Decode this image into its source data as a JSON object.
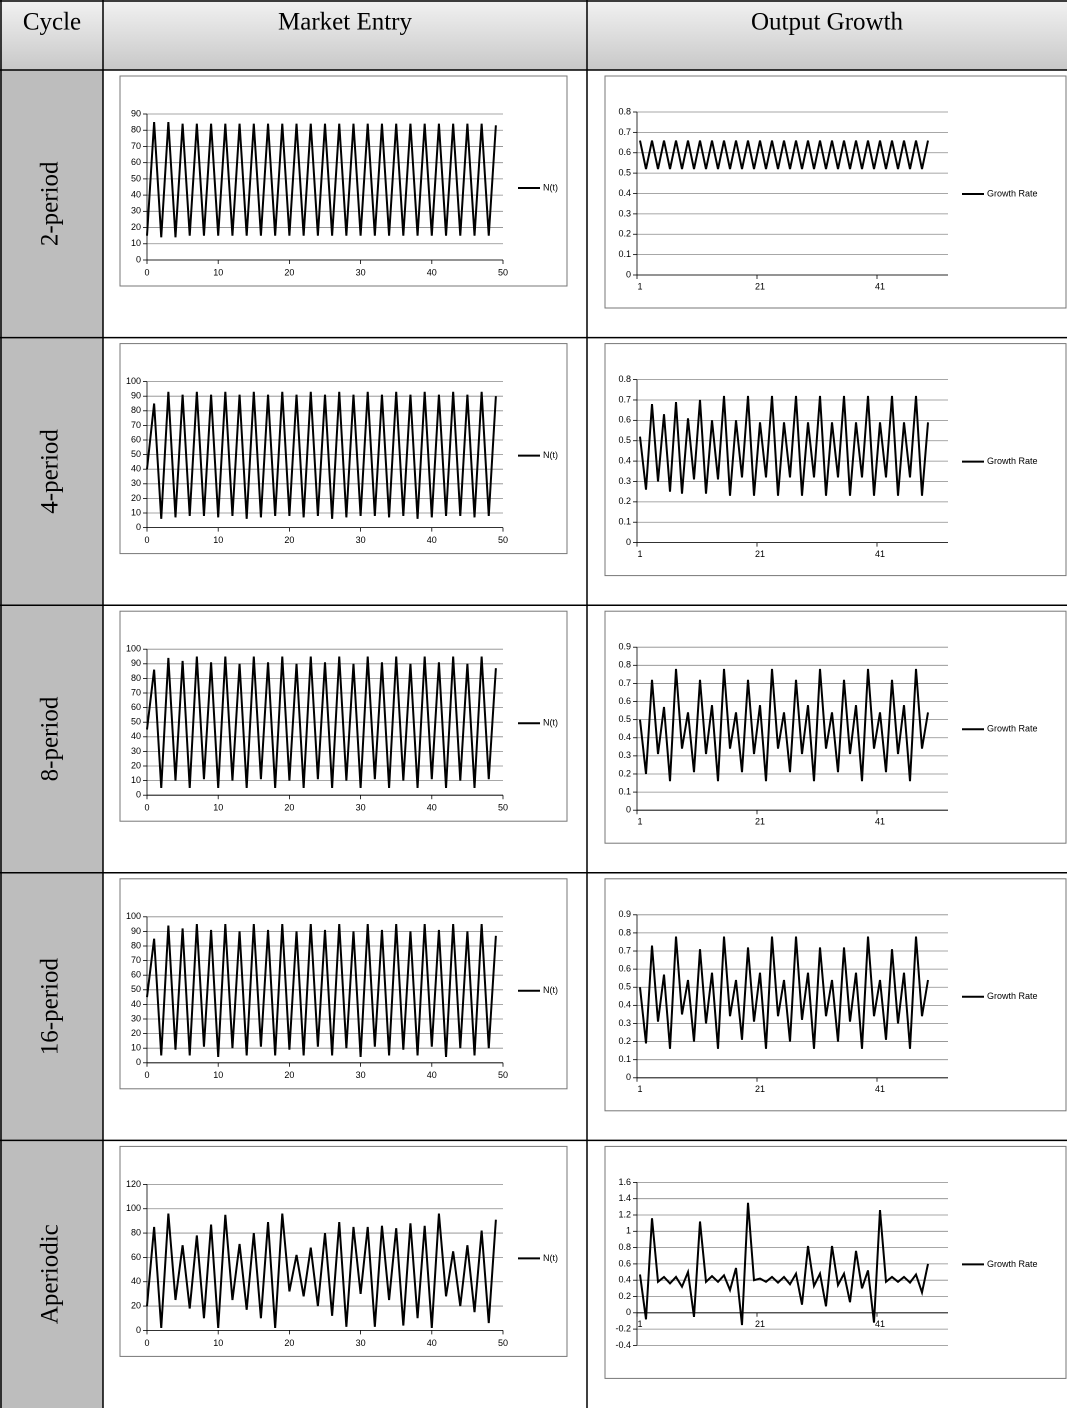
{
  "table": {
    "headers": [
      "Cycle",
      "Market Entry",
      "Output Growth"
    ],
    "rows": [
      "2-period",
      "4-period",
      "8-period",
      "16-period",
      "Aperiodic"
    ]
  },
  "chart_data": [
    {
      "type": "line",
      "x": [
        0,
        1,
        2,
        3,
        4,
        5,
        6,
        7,
        8,
        9,
        10,
        11,
        12,
        13,
        14,
        15,
        16,
        17,
        18,
        19,
        20,
        21,
        22,
        23,
        24,
        25,
        26,
        27,
        28,
        29,
        30,
        31,
        32,
        33,
        34,
        35,
        36,
        37,
        38,
        39,
        40,
        41,
        42,
        43,
        44,
        45,
        46,
        47,
        48,
        49
      ],
      "xlim": [
        0,
        50
      ],
      "xticks": [
        0,
        10,
        20,
        30,
        40,
        50
      ],
      "ylim": [
        0,
        90
      ],
      "yticks": [
        0,
        10,
        20,
        30,
        40,
        50,
        60,
        70,
        80,
        90
      ],
      "grid": true,
      "series": [
        {
          "name": "N(t)",
          "color": "#000000",
          "values": [
            15,
            85,
            14,
            85,
            14,
            84,
            15,
            84,
            15,
            84,
            15,
            84,
            15,
            84,
            15,
            84,
            15,
            84,
            15,
            84,
            15,
            84,
            15,
            84,
            15,
            84,
            15,
            84,
            15,
            84,
            15,
            84,
            15,
            84,
            15,
            84,
            15,
            84,
            15,
            84,
            15,
            84,
            15,
            84,
            15,
            84,
            15,
            84,
            15,
            83
          ]
        }
      ]
    },
    {
      "type": "line",
      "categories": [
        "1",
        null,
        null,
        null,
        null,
        null,
        null,
        null,
        null,
        null,
        null,
        null,
        null,
        null,
        null,
        null,
        null,
        null,
        null,
        null,
        "21",
        null,
        null,
        null,
        null,
        null,
        null,
        null,
        null,
        null,
        null,
        null,
        null,
        null,
        null,
        null,
        null,
        null,
        null,
        null,
        "41",
        null,
        null,
        null,
        null,
        null,
        null,
        null,
        null
      ],
      "ylim": [
        0,
        0.8
      ],
      "yticks": [
        0,
        0.1,
        0.2,
        0.3,
        0.4,
        0.5,
        0.6,
        0.7,
        0.8
      ],
      "grid": true,
      "series": [
        {
          "name": "Growth Rate",
          "color": "#000000",
          "values": [
            0.66,
            0.52,
            0.66,
            0.52,
            0.66,
            0.52,
            0.66,
            0.52,
            0.66,
            0.52,
            0.66,
            0.52,
            0.66,
            0.52,
            0.66,
            0.52,
            0.66,
            0.52,
            0.66,
            0.52,
            0.66,
            0.52,
            0.66,
            0.52,
            0.66,
            0.52,
            0.66,
            0.52,
            0.66,
            0.52,
            0.66,
            0.52,
            0.66,
            0.52,
            0.66,
            0.52,
            0.66,
            0.52,
            0.66,
            0.52,
            0.66,
            0.52,
            0.66,
            0.52,
            0.66,
            0.52,
            0.66,
            0.52,
            0.66
          ]
        }
      ]
    },
    {
      "type": "line",
      "x": [
        0,
        1,
        2,
        3,
        4,
        5,
        6,
        7,
        8,
        9,
        10,
        11,
        12,
        13,
        14,
        15,
        16,
        17,
        18,
        19,
        20,
        21,
        22,
        23,
        24,
        25,
        26,
        27,
        28,
        29,
        30,
        31,
        32,
        33,
        34,
        35,
        36,
        37,
        38,
        39,
        40,
        41,
        42,
        43,
        44,
        45,
        46,
        47,
        48,
        49
      ],
      "xlim": [
        0,
        50
      ],
      "xticks": [
        0,
        10,
        20,
        30,
        40,
        50
      ],
      "ylim": [
        0,
        100
      ],
      "yticks": [
        0,
        10,
        20,
        30,
        40,
        50,
        60,
        70,
        80,
        90,
        100
      ],
      "grid": true,
      "series": [
        {
          "name": "N(t)",
          "color": "#000000",
          "values": [
            40,
            85,
            6,
            93,
            7,
            91,
            8,
            93,
            8,
            91,
            7,
            93,
            8,
            91,
            6,
            93,
            7,
            91,
            8,
            93,
            8,
            91,
            7,
            93,
            8,
            91,
            6,
            93,
            7,
            91,
            8,
            93,
            8,
            91,
            7,
            93,
            8,
            91,
            6,
            93,
            7,
            91,
            8,
            93,
            8,
            91,
            7,
            93,
            8,
            90
          ]
        }
      ]
    },
    {
      "type": "line",
      "categories": [
        "1",
        null,
        null,
        null,
        null,
        null,
        null,
        null,
        null,
        null,
        null,
        null,
        null,
        null,
        null,
        null,
        null,
        null,
        null,
        null,
        "21",
        null,
        null,
        null,
        null,
        null,
        null,
        null,
        null,
        null,
        null,
        null,
        null,
        null,
        null,
        null,
        null,
        null,
        null,
        null,
        "41",
        null,
        null,
        null,
        null,
        null,
        null,
        null,
        null
      ],
      "ylim": [
        0,
        0.8
      ],
      "yticks": [
        0,
        0.1,
        0.2,
        0.3,
        0.4,
        0.5,
        0.6,
        0.7,
        0.8
      ],
      "grid": true,
      "series": [
        {
          "name": "Growth Rate",
          "color": "#000000",
          "values": [
            0.52,
            0.26,
            0.68,
            0.3,
            0.63,
            0.25,
            0.69,
            0.24,
            0.61,
            0.31,
            0.7,
            0.24,
            0.6,
            0.31,
            0.72,
            0.23,
            0.6,
            0.32,
            0.72,
            0.23,
            0.59,
            0.32,
            0.72,
            0.23,
            0.59,
            0.32,
            0.72,
            0.23,
            0.59,
            0.32,
            0.72,
            0.23,
            0.59,
            0.32,
            0.72,
            0.23,
            0.59,
            0.32,
            0.72,
            0.23,
            0.59,
            0.32,
            0.72,
            0.23,
            0.59,
            0.32,
            0.72,
            0.23,
            0.59
          ]
        }
      ]
    },
    {
      "type": "line",
      "x": [
        0,
        1,
        2,
        3,
        4,
        5,
        6,
        7,
        8,
        9,
        10,
        11,
        12,
        13,
        14,
        15,
        16,
        17,
        18,
        19,
        20,
        21,
        22,
        23,
        24,
        25,
        26,
        27,
        28,
        29,
        30,
        31,
        32,
        33,
        34,
        35,
        36,
        37,
        38,
        39,
        40,
        41,
        42,
        43,
        44,
        45,
        46,
        47,
        48,
        49
      ],
      "xlim": [
        0,
        50
      ],
      "xticks": [
        0,
        10,
        20,
        30,
        40,
        50
      ],
      "ylim": [
        0,
        100
      ],
      "yticks": [
        0,
        10,
        20,
        30,
        40,
        50,
        60,
        70,
        80,
        90,
        100
      ],
      "grid": true,
      "series": [
        {
          "name": "N(t)",
          "color": "#000000",
          "values": [
            45,
            86,
            5,
            94,
            10,
            92,
            5,
            95,
            11,
            91,
            5,
            95,
            10,
            90,
            5,
            95,
            11,
            91,
            5,
            95,
            10,
            90,
            5,
            95,
            11,
            91,
            5,
            95,
            10,
            90,
            5,
            95,
            11,
            91,
            5,
            95,
            10,
            90,
            5,
            95,
            11,
            91,
            5,
            95,
            10,
            90,
            5,
            95,
            11,
            87
          ]
        }
      ]
    },
    {
      "type": "line",
      "categories": [
        "1",
        null,
        null,
        null,
        null,
        null,
        null,
        null,
        null,
        null,
        null,
        null,
        null,
        null,
        null,
        null,
        null,
        null,
        null,
        null,
        "21",
        null,
        null,
        null,
        null,
        null,
        null,
        null,
        null,
        null,
        null,
        null,
        null,
        null,
        null,
        null,
        null,
        null,
        null,
        null,
        "41",
        null,
        null,
        null,
        null,
        null,
        null,
        null,
        null
      ],
      "ylim": [
        0,
        0.9
      ],
      "yticks": [
        0,
        0.1,
        0.2,
        0.3,
        0.4,
        0.5,
        0.6,
        0.7,
        0.8,
        0.9
      ],
      "grid": true,
      "series": [
        {
          "name": "Growth Rate",
          "color": "#000000",
          "values": [
            0.5,
            0.2,
            0.72,
            0.31,
            0.57,
            0.16,
            0.78,
            0.34,
            0.54,
            0.21,
            0.72,
            0.31,
            0.58,
            0.16,
            0.78,
            0.34,
            0.54,
            0.21,
            0.72,
            0.31,
            0.58,
            0.16,
            0.78,
            0.34,
            0.54,
            0.21,
            0.72,
            0.31,
            0.58,
            0.16,
            0.78,
            0.34,
            0.54,
            0.21,
            0.72,
            0.31,
            0.58,
            0.16,
            0.78,
            0.34,
            0.54,
            0.21,
            0.72,
            0.31,
            0.58,
            0.16,
            0.78,
            0.34,
            0.54
          ]
        }
      ]
    },
    {
      "type": "line",
      "x": [
        0,
        1,
        2,
        3,
        4,
        5,
        6,
        7,
        8,
        9,
        10,
        11,
        12,
        13,
        14,
        15,
        16,
        17,
        18,
        19,
        20,
        21,
        22,
        23,
        24,
        25,
        26,
        27,
        28,
        29,
        30,
        31,
        32,
        33,
        34,
        35,
        36,
        37,
        38,
        39,
        40,
        41,
        42,
        43,
        44,
        45,
        46,
        47,
        48,
        49
      ],
      "xlim": [
        0,
        50
      ],
      "xticks": [
        0,
        10,
        20,
        30,
        40,
        50
      ],
      "ylim": [
        0,
        100
      ],
      "yticks": [
        0,
        10,
        20,
        30,
        40,
        50,
        60,
        70,
        80,
        90,
        100
      ],
      "grid": true,
      "series": [
        {
          "name": "N(t)",
          "color": "#000000",
          "values": [
            45,
            85,
            5,
            94,
            9,
            92,
            5,
            95,
            11,
            91,
            4,
            95,
            10,
            90,
            5,
            95,
            11,
            91,
            5,
            95,
            9,
            90,
            5,
            95,
            11,
            91,
            5,
            95,
            10,
            90,
            4,
            95,
            11,
            91,
            5,
            95,
            9,
            90,
            5,
            95,
            11,
            91,
            4,
            95,
            10,
            90,
            5,
            95,
            10,
            87
          ]
        }
      ]
    },
    {
      "type": "line",
      "categories": [
        "1",
        null,
        null,
        null,
        null,
        null,
        null,
        null,
        null,
        null,
        null,
        null,
        null,
        null,
        null,
        null,
        null,
        null,
        null,
        null,
        "21",
        null,
        null,
        null,
        null,
        null,
        null,
        null,
        null,
        null,
        null,
        null,
        null,
        null,
        null,
        null,
        null,
        null,
        null,
        null,
        "41",
        null,
        null,
        null,
        null,
        null,
        null,
        null,
        null
      ],
      "ylim": [
        0,
        0.9
      ],
      "yticks": [
        0,
        0.1,
        0.2,
        0.3,
        0.4,
        0.5,
        0.6,
        0.7,
        0.8,
        0.9
      ],
      "grid": true,
      "series": [
        {
          "name": "Growth Rate",
          "color": "#000000",
          "values": [
            0.5,
            0.19,
            0.73,
            0.31,
            0.57,
            0.16,
            0.78,
            0.35,
            0.54,
            0.2,
            0.71,
            0.3,
            0.58,
            0.16,
            0.78,
            0.34,
            0.54,
            0.21,
            0.72,
            0.31,
            0.58,
            0.16,
            0.78,
            0.34,
            0.54,
            0.2,
            0.78,
            0.32,
            0.58,
            0.16,
            0.72,
            0.34,
            0.54,
            0.2,
            0.72,
            0.31,
            0.58,
            0.16,
            0.78,
            0.34,
            0.54,
            0.21,
            0.71,
            0.3,
            0.58,
            0.16,
            0.78,
            0.34,
            0.54
          ]
        }
      ]
    },
    {
      "type": "line",
      "x": [
        0,
        1,
        2,
        3,
        4,
        5,
        6,
        7,
        8,
        9,
        10,
        11,
        12,
        13,
        14,
        15,
        16,
        17,
        18,
        19,
        20,
        21,
        22,
        23,
        24,
        25,
        26,
        27,
        28,
        29,
        30,
        31,
        32,
        33,
        34,
        35,
        36,
        37,
        38,
        39,
        40,
        41,
        42,
        43,
        44,
        45,
        46,
        47,
        48,
        49
      ],
      "xlim": [
        0,
        50
      ],
      "xticks": [
        0,
        10,
        20,
        30,
        40,
        50
      ],
      "ylim": [
        0,
        120
      ],
      "yticks": [
        0,
        20,
        40,
        60,
        80,
        100,
        120
      ],
      "grid": true,
      "series": [
        {
          "name": "N(t)",
          "color": "#000000",
          "values": [
            20,
            85,
            2,
            96,
            25,
            70,
            18,
            78,
            10,
            87,
            2,
            95,
            25,
            71,
            17,
            80,
            10,
            89,
            2,
            96,
            32,
            62,
            28,
            68,
            20,
            80,
            12,
            89,
            3,
            85,
            30,
            85,
            3,
            86,
            25,
            84,
            4,
            88,
            10,
            86,
            2,
            96,
            28,
            65,
            20,
            70,
            15,
            82,
            6,
            91
          ]
        }
      ]
    },
    {
      "type": "line",
      "categories": [
        "1",
        null,
        null,
        null,
        null,
        null,
        null,
        null,
        null,
        null,
        null,
        null,
        null,
        null,
        null,
        null,
        null,
        null,
        null,
        null,
        "21",
        null,
        null,
        null,
        null,
        null,
        null,
        null,
        null,
        null,
        null,
        null,
        null,
        null,
        null,
        null,
        null,
        null,
        null,
        null,
        "41",
        null,
        null,
        null,
        null,
        null,
        null,
        null,
        null
      ],
      "ylim": [
        -0.4,
        1.6
      ],
      "yticks": [
        -0.4,
        -0.2,
        0,
        0.2,
        0.4,
        0.6,
        0.8,
        1,
        1.2,
        1.4,
        1.6
      ],
      "grid": true,
      "series": [
        {
          "name": "Growth Rate",
          "color": "#000000",
          "values": [
            0.47,
            -0.08,
            1.16,
            0.38,
            0.44,
            0.36,
            0.44,
            0.32,
            0.5,
            -0.05,
            1.12,
            0.38,
            0.45,
            0.38,
            0.46,
            0.28,
            0.55,
            -0.15,
            1.35,
            0.4,
            0.42,
            0.38,
            0.44,
            0.37,
            0.44,
            0.35,
            0.48,
            0.1,
            0.82,
            0.33,
            0.48,
            0.08,
            0.82,
            0.34,
            0.48,
            0.13,
            0.76,
            0.3,
            0.52,
            -0.12,
            1.26,
            0.38,
            0.44,
            0.38,
            0.44,
            0.37,
            0.47,
            0.25,
            0.6
          ]
        }
      ]
    }
  ]
}
